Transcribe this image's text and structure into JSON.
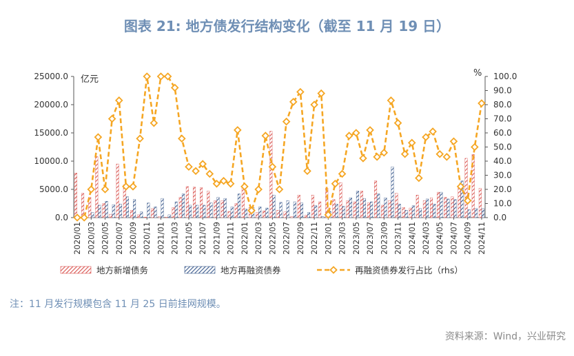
{
  "page": {
    "title": "图表 21: 地方债发行结构变化（截至 11 月 19 日）",
    "note": "注：11 月发行规模包含 11 月 25 日前挂网规模。",
    "source": "资料来源：Wind，兴业研究"
  },
  "colors": {
    "new_bond": "#d9534f",
    "refi_bond": "#3b5a8c",
    "ratio_line": "#f5a623",
    "title": "#6f8fb5"
  },
  "chart_data": {
    "type": "bar",
    "left_unit": "亿元",
    "right_unit": "%",
    "ylim": [
      0,
      25000
    ],
    "y2lim": [
      0,
      100
    ],
    "yticks": [
      "0.0",
      "5000.0",
      "10000.0",
      "15000.0",
      "20000.0",
      "25000.0"
    ],
    "y2ticks": [
      "0.0",
      "10.0",
      "20.0",
      "30.0",
      "40.0",
      "50.0",
      "60.0",
      "70.0",
      "80.0",
      "90.0",
      "100.0"
    ],
    "categories": [
      "2020/01",
      "2020/02",
      "2020/03",
      "2020/04",
      "2020/05",
      "2020/06",
      "2020/07",
      "2020/08",
      "2020/09",
      "2020/10",
      "2020/11",
      "2020/12",
      "2021/01",
      "2021/02",
      "2021/03",
      "2021/04",
      "2021/05",
      "2021/06",
      "2021/07",
      "2021/08",
      "2021/09",
      "2021/10",
      "2021/11",
      "2021/12",
      "2022/01",
      "2022/02",
      "2022/03",
      "2022/04",
      "2022/05",
      "2022/06",
      "2022/07",
      "2022/08",
      "2022/09",
      "2022/10",
      "2022/11",
      "2022/12",
      "2023/01",
      "2023/02",
      "2023/03",
      "2023/04",
      "2023/05",
      "2023/06",
      "2023/07",
      "2023/08",
      "2023/09",
      "2023/10",
      "2023/11",
      "2023/12",
      "2024/01",
      "2024/02",
      "2024/03",
      "2024/04",
      "2024/05",
      "2024/06",
      "2024/07",
      "2024/08",
      "2024/09",
      "2024/10",
      "2024/11"
    ],
    "xtick_labels": [
      "2020/01",
      "2020/03",
      "2020/05",
      "2020/07",
      "2020/09",
      "2020/11",
      "2021/01",
      "2021/03",
      "2021/05",
      "2021/07",
      "2021/09",
      "2021/11",
      "2022/01",
      "2022/03",
      "2022/05",
      "2022/07",
      "2022/09",
      "2022/11",
      "2023/01",
      "2023/03",
      "2023/05",
      "2023/07",
      "2023/09",
      "2023/11",
      "2024/01",
      "2024/03",
      "2024/05",
      "2024/07",
      "2024/09",
      "2024/11"
    ],
    "series": [
      {
        "name": "地方新增债务",
        "kind": "bar",
        "values": [
          7900,
          4300,
          3600,
          10800,
          2500,
          600,
          9500,
          5800,
          1300,
          500,
          100,
          1600,
          200,
          100,
          1800,
          3600,
          5500,
          5400,
          5300,
          4700,
          3000,
          3000,
          1100,
          2500,
          5300,
          1800,
          900,
          1200,
          15300,
          1300,
          1000,
          200,
          4000,
          400,
          4000,
          2800,
          5200,
          3200,
          6200,
          3000,
          2800,
          4700,
          2600,
          6500,
          2200,
          3000,
          4300,
          1800,
          1700,
          4000,
          3000,
          3500,
          4500,
          3600,
          3700,
          5500,
          10500,
          11200,
          5200
        ]
      },
      {
        "name": "地方再融资债券",
        "kind": "bar",
        "values": [
          0,
          0,
          900,
          2200,
          2900,
          2300,
          2400,
          3700,
          3200,
          1000,
          2600,
          1900,
          3400,
          500,
          2800,
          4200,
          2200,
          2200,
          2200,
          2600,
          3600,
          3400,
          1900,
          4200,
          1500,
          1800,
          1900,
          1700,
          4000,
          2700,
          3000,
          2800,
          2600,
          900,
          2100,
          200,
          1100,
          2400,
          2000,
          3500,
          4700,
          3400,
          2800,
          4200,
          3500,
          9000,
          2400,
          1300,
          2100,
          1600,
          3300,
          2400,
          4500,
          3300,
          3200,
          6500,
          1400,
          1600,
          1600
        ]
      },
      {
        "name": "再融资债券发行占比（rhs）",
        "kind": "line",
        "axis": "right",
        "values": [
          0,
          0,
          20,
          57,
          20,
          70,
          83,
          22,
          22,
          56,
          100,
          67,
          100,
          100,
          92,
          56,
          36,
          33,
          38,
          31,
          24,
          26,
          24,
          62,
          22,
          5,
          20,
          58,
          36,
          20,
          68,
          82,
          89,
          33,
          80,
          88,
          2,
          24,
          31,
          58,
          60,
          42,
          62,
          43,
          46,
          83,
          67,
          45,
          53,
          28,
          57,
          61,
          45,
          43,
          54,
          22,
          12,
          50,
          81
        ]
      }
    ]
  }
}
